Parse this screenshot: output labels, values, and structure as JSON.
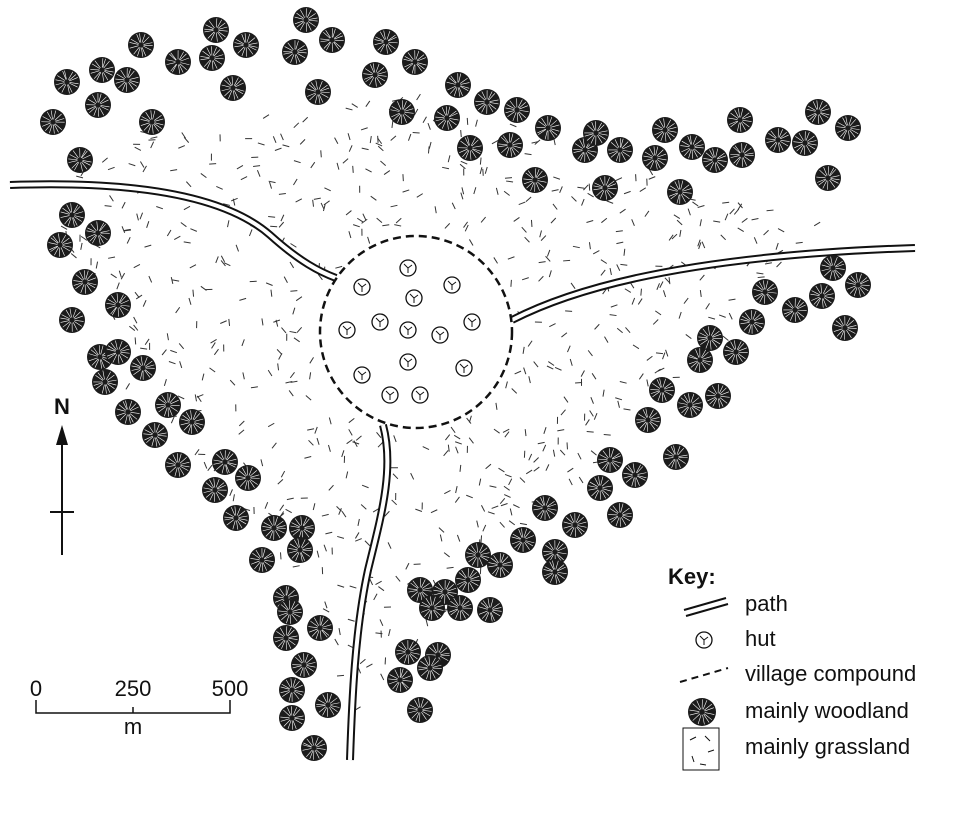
{
  "map": {
    "north": "N",
    "scale": {
      "ticks": [
        0,
        250,
        500
      ],
      "unit": "m"
    },
    "key": {
      "title": "Key:",
      "items": [
        "path",
        "hut",
        "village compound",
        "mainly woodland",
        "mainly grassland"
      ]
    }
  }
}
